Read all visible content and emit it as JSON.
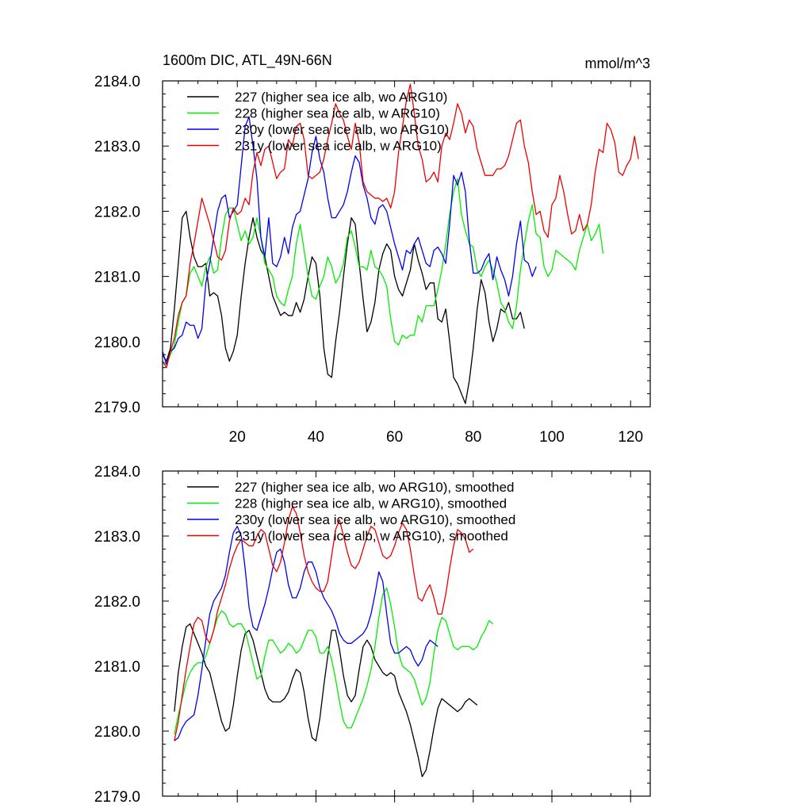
{
  "figure": {
    "title_left": "1600m DIC, ATL_49N-66N",
    "title_right": "mmol/m^3"
  },
  "colors": {
    "s227": "#000000",
    "s228": "#00ee00",
    "s230y": "#0000ee",
    "s231y": "#ee0000",
    "axes": "#000000"
  },
  "chart_data": [
    {
      "type": "line",
      "title": "1600m DIC, ATL_49N-66N",
      "units": "mmol/m^3",
      "xlim": [
        1,
        125
      ],
      "ylim": [
        2179.0,
        2184.0
      ],
      "xticks": [
        20,
        40,
        60,
        80,
        100,
        120
      ],
      "yticks": [
        2179.0,
        2180.0,
        2181.0,
        2182.0,
        2183.0,
        2184.0
      ],
      "show_xtick_labels": true,
      "legend": "top-left",
      "series": [
        {
          "name": "227 (higher sea ice alb, wo ARG10)",
          "color_key": "s227",
          "start": 1,
          "values": [
            2179.8,
            2179.7,
            2179.9,
            2180.5,
            2181.2,
            2181.9,
            2182.0,
            2181.6,
            2181.3,
            2181.15,
            2181.15,
            2181.2,
            2180.7,
            2180.75,
            2180.7,
            2180.4,
            2179.9,
            2179.7,
            2179.85,
            2180.1,
            2180.7,
            2181.2,
            2181.6,
            2181.9,
            2181.6,
            2181.4,
            2181.3,
            2181.0,
            2180.7,
            2180.55,
            2180.4,
            2180.45,
            2180.4,
            2180.4,
            2180.6,
            2180.45,
            2180.65,
            2181.0,
            2181.3,
            2181.2,
            2180.7,
            2179.9,
            2179.5,
            2179.45,
            2180.0,
            2180.45,
            2181.0,
            2181.5,
            2181.9,
            2181.8,
            2181.2,
            2180.65,
            2180.15,
            2180.3,
            2180.6,
            2181.1,
            2181.35,
            2181.5,
            2181.4,
            2181.0,
            2180.8,
            2180.7,
            2180.9,
            2181.1,
            2181.5,
            2181.25,
            2181.05,
            2180.8,
            2180.9,
            2180.9,
            2180.35,
            2180.3,
            2180.5,
            2180.0,
            2179.45,
            2179.35,
            2179.2,
            2179.05,
            2179.4,
            2179.9,
            2180.5,
            2180.95,
            2180.75,
            2180.3,
            2180.0,
            2180.2,
            2180.5,
            2180.45,
            2180.6,
            2180.35,
            2180.35,
            2180.45,
            2180.2
          ]
        },
        {
          "name": "228 (higher sea ice alb, w ARG10)",
          "color_key": "s228",
          "start": 1,
          "values": [
            2179.7,
            2179.65,
            2179.8,
            2179.95,
            2180.3,
            2180.6,
            2180.7,
            2181.05,
            2181.15,
            2181.0,
            2180.85,
            2181.15,
            2181.3,
            2181.05,
            2181.1,
            2181.6,
            2181.95,
            2182.05,
            2182.05,
            2181.8,
            2181.55,
            2181.7,
            2181.5,
            2181.6,
            2181.9,
            2181.6,
            2181.2,
            2181.1,
            2181.0,
            2180.7,
            2180.6,
            2180.55,
            2180.8,
            2181.0,
            2181.5,
            2181.8,
            2181.4,
            2181.0,
            2180.7,
            2180.65,
            2180.85,
            2181.0,
            2181.3,
            2181.15,
            2180.9,
            2181.0,
            2181.2,
            2181.6,
            2181.7,
            2181.45,
            2181.15,
            2181.15,
            2181.1,
            2181.4,
            2181.15,
            2181.1,
            2181.0,
            2180.85,
            2180.35,
            2180.0,
            2179.95,
            2180.1,
            2180.05,
            2180.1,
            2180.1,
            2180.4,
            2180.3,
            2180.55,
            2180.55,
            2180.55,
            2180.8,
            2181.1,
            2181.5,
            2181.95,
            2182.3,
            2182.5,
            2181.95,
            2181.7,
            2181.5,
            2181.45,
            2181.1,
            2181.0,
            2181.15,
            2181.25,
            2181.1,
            2180.9,
            2180.6,
            2180.5,
            2180.3,
            2180.2,
            2180.55,
            2181.1,
            2181.5,
            2181.85,
            2182.1,
            2181.65,
            2181.6,
            2181.15,
            2181.0,
            2181.1,
            2181.4,
            2181.35,
            2181.3,
            2181.25,
            2181.2,
            2181.1,
            2181.4,
            2181.6,
            2181.8,
            2181.55,
            2181.65,
            2181.8,
            2181.35
          ]
        },
        {
          "name": "230y (lower sea ice alb, wo ARG10)",
          "color_key": "s230y",
          "start": 1,
          "values": [
            2179.85,
            2179.65,
            2179.85,
            2179.9,
            2180.05,
            2180.1,
            2180.3,
            2180.25,
            2180.25,
            2180.05,
            2180.2,
            2180.9,
            2181.2,
            2181.6,
            2182.0,
            2182.2,
            2182.25,
            2181.9,
            2182.0,
            2182.1,
            2182.7,
            2183.3,
            2183.45,
            2183.0,
            2182.5,
            2181.6,
            2181.3,
            2181.9,
            2181.2,
            2181.15,
            2181.3,
            2181.6,
            2181.35,
            2181.75,
            2181.95,
            2182.0,
            2182.25,
            2182.5,
            2182.9,
            2183.15,
            2182.8,
            2182.6,
            2182.2,
            2181.9,
            2181.9,
            2182.0,
            2182.1,
            2182.3,
            2182.6,
            2182.85,
            2182.75,
            2182.4,
            2182.2,
            2181.9,
            2181.8,
            2182.05,
            2182.1,
            2182.0,
            2181.75,
            2181.5,
            2181.3,
            2181.1,
            2181.4,
            2181.35,
            2181.5,
            2181.6,
            2181.4,
            2181.2,
            2181.15,
            2181.4,
            2181.45,
            2181.35,
            2181.2,
            2181.8,
            2182.55,
            2182.4,
            2182.6,
            2182.3,
            2181.55,
            2181.05,
            2181.05,
            2181.1,
            2181.25,
            2181.35,
            2180.95,
            2181.3,
            2181.1,
            2180.95,
            2180.7,
            2181.0,
            2181.5,
            2181.85,
            2181.25,
            2181.2,
            2181.0,
            2181.15
          ]
        },
        {
          "name": "231y (lower sea ice alb, w ARG10)",
          "color_key": "s231y",
          "start": 1,
          "values": [
            2179.7,
            2179.6,
            2179.85,
            2180.05,
            2180.4,
            2180.6,
            2180.7,
            2181.2,
            2181.5,
            2181.85,
            2182.2,
            2182.0,
            2181.8,
            2181.55,
            2181.3,
            2181.25,
            2181.4,
            2181.85,
            2182.05,
            2181.95,
            2182.0,
            2182.2,
            2182.1,
            2182.6,
            2182.9,
            2182.7,
            2182.95,
            2183.0,
            2182.75,
            2182.5,
            2182.6,
            2182.65,
            2183.1,
            2183.0,
            2183.3,
            2183.35,
            2183.1,
            2182.55,
            2182.5,
            2182.55,
            2182.6,
            2182.8,
            2183.1,
            2183.35,
            2183.65,
            2183.5,
            2183.4,
            2183.15,
            2182.95,
            2183.35,
            2183.05,
            2182.45,
            2182.3,
            2182.25,
            2182.2,
            2182.2,
            2182.15,
            2182.2,
            2182.05,
            2182.3,
            2182.9,
            2183.3,
            2183.7,
            2183.95,
            2183.5,
            2183.0,
            2182.8,
            2182.45,
            2182.5,
            2182.6,
            2182.45,
            2183.0,
            2183.2,
            2183.1,
            2183.35,
            2183.65,
            2183.5,
            2183.2,
            2183.4,
            2183.3,
            2182.95,
            2182.75,
            2182.55,
            2182.55,
            2182.55,
            2182.65,
            2182.65,
            2182.7,
            2182.85,
            2183.1,
            2183.35,
            2183.4,
            2183.0,
            2182.75,
            2182.3,
            2181.95,
            2182.0,
            2181.7,
            2181.6,
            2182.1,
            2182.2,
            2182.55,
            2182.3,
            2181.95,
            2181.65,
            2181.7,
            2181.95,
            2181.7,
            2181.8,
            2182.1,
            2182.6,
            2182.95,
            2182.9,
            2183.35,
            2183.25,
            2183.05,
            2182.6,
            2182.55,
            2182.7,
            2182.8,
            2183.15,
            2182.8
          ]
        }
      ]
    },
    {
      "type": "line",
      "xlim": [
        1,
        125
      ],
      "ylim": [
        2179.0,
        2184.0
      ],
      "xticks": [
        20,
        40,
        60,
        80,
        100,
        120
      ],
      "yticks": [
        2179.0,
        2180.0,
        2181.0,
        2182.0,
        2183.0,
        2184.0
      ],
      "show_xtick_labels": false,
      "legend": "top-left",
      "series": [
        {
          "name": "227 (higher sea ice alb, wo ARG10), smoothed",
          "color_key": "s227",
          "start": 4,
          "values": [
            2180.3,
            2180.9,
            2181.3,
            2181.6,
            2181.65,
            2181.5,
            2181.35,
            2181.2,
            2181.0,
            2180.9,
            2180.65,
            2180.4,
            2180.15,
            2180.0,
            2180.05,
            2180.4,
            2180.85,
            2181.25,
            2181.5,
            2181.55,
            2181.4,
            2181.15,
            2180.9,
            2180.65,
            2180.5,
            2180.45,
            2180.45,
            2180.45,
            2180.5,
            2180.6,
            2180.8,
            2180.95,
            2180.9,
            2180.6,
            2180.2,
            2179.9,
            2179.85,
            2180.2,
            2180.7,
            2181.15,
            2181.55,
            2181.55,
            2181.25,
            2180.85,
            2180.55,
            2180.45,
            2180.55,
            2180.95,
            2181.3,
            2181.4,
            2181.3,
            2181.1,
            2181.0,
            2180.9,
            2180.85,
            2180.9,
            2180.85,
            2180.6,
            2180.45,
            2180.3,
            2180.1,
            2179.85,
            2179.6,
            2179.3,
            2179.4,
            2179.7,
            2180.05,
            2180.35,
            2180.5,
            2180.45,
            2180.4,
            2180.35,
            2180.3,
            2180.35,
            2180.45,
            2180.5,
            2180.45,
            2180.4
          ]
        },
        {
          "name": "228 (higher sea ice alb, w ARG10), smoothed",
          "color_key": "s228",
          "start": 4,
          "values": [
            2179.95,
            2180.25,
            2180.5,
            2180.75,
            2180.9,
            2181.0,
            2181.05,
            2181.05,
            2181.15,
            2181.35,
            2181.55,
            2181.75,
            2181.85,
            2181.8,
            2181.65,
            2181.6,
            2181.65,
            2181.65,
            2181.55,
            2181.3,
            2181.05,
            2180.8,
            2180.85,
            2181.15,
            2181.4,
            2181.4,
            2181.3,
            2181.2,
            2181.25,
            2181.35,
            2181.3,
            2181.2,
            2181.25,
            2181.4,
            2181.55,
            2181.55,
            2181.45,
            2181.2,
            2181.2,
            2181.3,
            2181.1,
            2180.8,
            2180.45,
            2180.15,
            2180.05,
            2180.05,
            2180.2,
            2180.35,
            2180.5,
            2180.7,
            2180.95,
            2181.3,
            2181.75,
            2182.1,
            2182.2,
            2181.95,
            2181.6,
            2181.2,
            2181.0,
            2180.95,
            2180.9,
            2180.8,
            2180.6,
            2180.4,
            2180.5,
            2180.75,
            2181.2,
            2181.55,
            2181.75,
            2181.7,
            2181.5,
            2181.3,
            2181.25,
            2181.3,
            2181.3,
            2181.3,
            2181.25,
            2181.3,
            2181.45,
            2181.55,
            2181.7,
            2181.65
          ]
        },
        {
          "name": "230y (lower sea ice alb, wo ARG10), smoothed",
          "color_key": "s230y",
          "start": 4,
          "values": [
            2179.85,
            2179.9,
            2180.05,
            2180.15,
            2180.2,
            2180.25,
            2180.55,
            2180.95,
            2181.4,
            2181.8,
            2182.0,
            2182.1,
            2182.2,
            2182.4,
            2182.75,
            2183.05,
            2183.15,
            2183.0,
            2182.5,
            2181.9,
            2181.6,
            2181.55,
            2181.75,
            2181.95,
            2182.2,
            2182.5,
            2182.75,
            2182.8,
            2182.6,
            2182.25,
            2182.05,
            2182.05,
            2182.2,
            2182.45,
            2182.6,
            2182.6,
            2182.45,
            2182.2,
            2182.05,
            2181.95,
            2181.85,
            2181.7,
            2181.5,
            2181.4,
            2181.35,
            2181.35,
            2181.4,
            2181.45,
            2181.5,
            2181.6,
            2181.8,
            2182.1,
            2182.45,
            2182.3,
            2181.8,
            2181.35,
            2181.2,
            2181.2,
            2181.25,
            2181.3,
            2181.25,
            2181.1,
            2181.0,
            2181.1,
            2181.3,
            2181.4,
            2181.35,
            2181.3
          ]
        },
        {
          "name": "231y (lower sea ice alb, w ARG10), smoothed",
          "color_key": "s231y",
          "start": 4,
          "values": [
            2179.85,
            2180.15,
            2180.55,
            2180.95,
            2181.3,
            2181.65,
            2181.75,
            2181.7,
            2181.45,
            2181.35,
            2181.55,
            2181.85,
            2182.05,
            2182.25,
            2182.5,
            2182.7,
            2182.85,
            2182.95,
            2182.9,
            2182.85,
            2182.85,
            2183.0,
            2183.1,
            2183.05,
            2182.8,
            2182.55,
            2182.45,
            2182.6,
            2182.9,
            2183.25,
            2183.45,
            2183.35,
            2183.05,
            2182.7,
            2182.45,
            2182.3,
            2182.2,
            2182.15,
            2182.15,
            2182.3,
            2182.7,
            2183.1,
            2183.25,
            2183.0,
            2182.75,
            2182.55,
            2182.5,
            2182.6,
            2182.8,
            2183.0,
            2183.15,
            2183.1,
            2182.9,
            2182.7,
            2182.65,
            2182.7,
            2182.85,
            2183.05,
            2183.2,
            2183.1,
            2182.8,
            2182.4,
            2182.05,
            2182.0,
            2182.15,
            2182.25,
            2182.05,
            2181.8,
            2181.8,
            2182.1,
            2182.5,
            2182.85,
            2183.1,
            2183.05,
            2182.95,
            2182.75,
            2182.8
          ]
        }
      ]
    }
  ]
}
